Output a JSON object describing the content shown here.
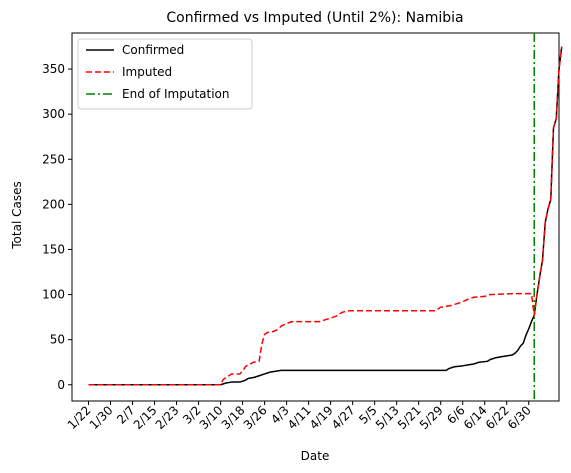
{
  "chart_data": {
    "type": "line",
    "title": "Confirmed vs Imputed (Until 2%): Namibia",
    "xlabel": "Date",
    "ylabel": "Total Cases",
    "x_tick_labels": [
      "1/22",
      "1/30",
      "2/7",
      "2/15",
      "2/23",
      "3/2",
      "3/10",
      "3/18",
      "3/26",
      "4/3",
      "4/11",
      "4/19",
      "4/27",
      "5/5",
      "5/13",
      "5/21",
      "5/29",
      "6/6",
      "6/14",
      "6/22",
      "6/30"
    ],
    "x_tick_start_day": 0,
    "x_tick_step_days": 8,
    "xlim_days": [
      -6,
      171
    ],
    "ylim": [
      -18,
      390
    ],
    "y_ticks": [
      0,
      50,
      100,
      150,
      200,
      250,
      300,
      350
    ],
    "grid": false,
    "legend_position": "top-left",
    "series": [
      {
        "name": "Confirmed",
        "color": "#000000",
        "style": "solid",
        "points": [
          [
            0,
            0
          ],
          [
            48,
            0
          ],
          [
            49,
            1
          ],
          [
            50,
            2
          ],
          [
            52,
            3
          ],
          [
            55,
            3
          ],
          [
            56,
            4
          ],
          [
            57,
            5
          ],
          [
            58,
            7
          ],
          [
            60,
            8
          ],
          [
            62,
            10
          ],
          [
            64,
            12
          ],
          [
            66,
            14
          ],
          [
            68,
            15
          ],
          [
            70,
            16
          ],
          [
            80,
            16
          ],
          [
            100,
            16
          ],
          [
            120,
            16
          ],
          [
            130,
            16
          ],
          [
            131,
            18
          ],
          [
            133,
            20
          ],
          [
            136,
            21
          ],
          [
            138,
            22
          ],
          [
            140,
            23
          ],
          [
            142,
            25
          ],
          [
            145,
            26
          ],
          [
            146,
            28
          ],
          [
            147,
            29
          ],
          [
            148,
            30
          ],
          [
            150,
            31
          ],
          [
            152,
            32
          ],
          [
            154,
            33
          ],
          [
            155,
            35
          ],
          [
            156,
            38
          ],
          [
            157,
            43
          ],
          [
            158,
            46
          ],
          [
            159,
            55
          ],
          [
            160,
            62
          ],
          [
            161,
            70
          ],
          [
            162,
            77
          ],
          [
            163,
            100
          ],
          [
            164,
            120
          ],
          [
            165,
            138
          ],
          [
            166,
            180
          ],
          [
            167,
            195
          ],
          [
            168,
            205
          ],
          [
            169,
            285
          ],
          [
            170,
            295
          ],
          [
            171,
            350
          ],
          [
            172,
            375
          ]
        ]
      },
      {
        "name": "Imputed",
        "color": "#ff0000",
        "style": "dashed",
        "points": [
          [
            0,
            0
          ],
          [
            48,
            0
          ],
          [
            49,
            6
          ],
          [
            50,
            8
          ],
          [
            51,
            10
          ],
          [
            52,
            12
          ],
          [
            55,
            12
          ],
          [
            56,
            15
          ],
          [
            57,
            20
          ],
          [
            58,
            22
          ],
          [
            60,
            25
          ],
          [
            62,
            26
          ],
          [
            63,
            45
          ],
          [
            64,
            56
          ],
          [
            65,
            58
          ],
          [
            67,
            59
          ],
          [
            68,
            60
          ],
          [
            69,
            62
          ],
          [
            70,
            65
          ],
          [
            72,
            68
          ],
          [
            74,
            70
          ],
          [
            84,
            70
          ],
          [
            86,
            72
          ],
          [
            88,
            74
          ],
          [
            90,
            76
          ],
          [
            91,
            78
          ],
          [
            92,
            80
          ],
          [
            94,
            82
          ],
          [
            110,
            82
          ],
          [
            126,
            82
          ],
          [
            127,
            84
          ],
          [
            128,
            86
          ],
          [
            132,
            88
          ],
          [
            134,
            90
          ],
          [
            136,
            92
          ],
          [
            138,
            95
          ],
          [
            140,
            97
          ],
          [
            144,
            98
          ],
          [
            146,
            100
          ],
          [
            154,
            101
          ],
          [
            161,
            101
          ],
          [
            162,
            77
          ],
          [
            163,
            100
          ],
          [
            164,
            120
          ],
          [
            165,
            138
          ],
          [
            166,
            180
          ],
          [
            167,
            195
          ],
          [
            168,
            205
          ],
          [
            169,
            285
          ],
          [
            170,
            295
          ],
          [
            171,
            350
          ],
          [
            172,
            375
          ]
        ]
      },
      {
        "name": "End of Imputation",
        "color": "#008000",
        "style": "dashdot",
        "vertical_x_day": 162
      }
    ]
  }
}
